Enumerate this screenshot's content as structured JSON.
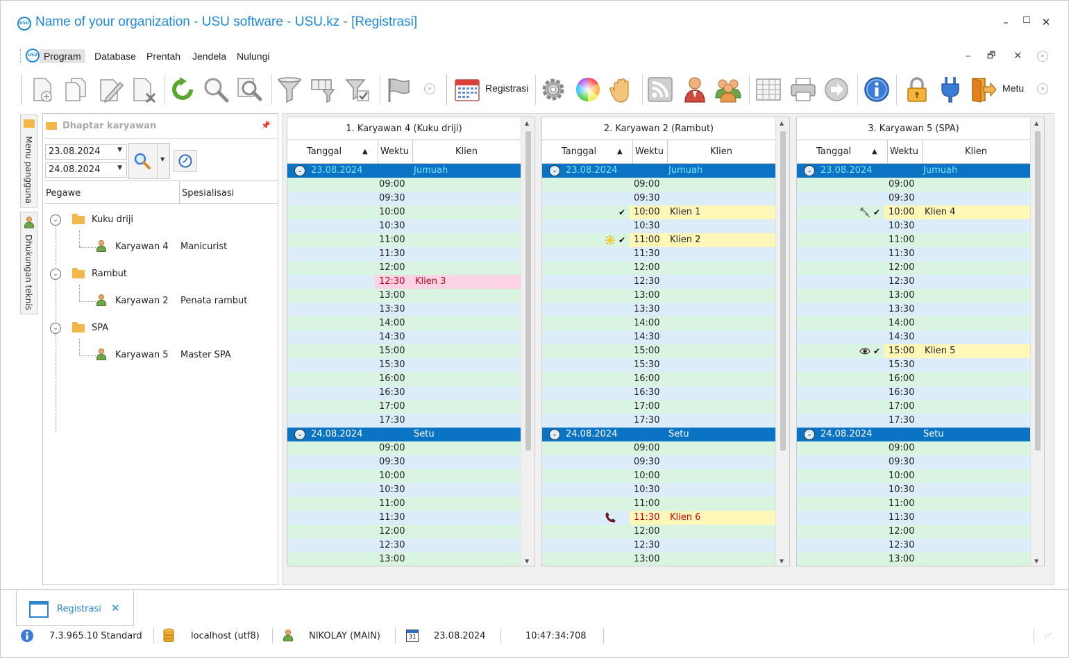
{
  "window": {
    "title": "Name of your organization - USU software - USU.kz - [Registrasi]",
    "logo_text": "USU",
    "controls": [
      "–",
      "☐",
      "✕"
    ]
  },
  "menu": {
    "items": [
      "Program",
      "Database",
      "Prentah",
      "Jendela",
      "Nulungi"
    ],
    "mdi_controls": [
      "–",
      "🗗",
      "✕"
    ]
  },
  "toolbar": {
    "registrasi_label": "Registrasi",
    "exit_label": "Metu"
  },
  "side_tabs": {
    "user_menu": "Menu pangguna",
    "tech_support": "Dhukungan teknis"
  },
  "employee_panel": {
    "title": "Dhaptar karyawan",
    "date_from": "23.08.2024",
    "date_to": "24.08.2024",
    "col_employee": "Pegawe",
    "col_specialization": "Spesialisasi",
    "groups": [
      {
        "name": "Kuku driji",
        "employee": "Karyawan 4",
        "specialization": "Manicurist"
      },
      {
        "name": "Rambut",
        "employee": "Karyawan 2",
        "specialization": "Penata rambut"
      },
      {
        "name": "SPA",
        "employee": "Karyawan 5",
        "specialization": "Master SPA"
      }
    ]
  },
  "schedule": {
    "col_date": "Tanggal",
    "col_time": "Wektu",
    "col_client": "Klien",
    "day1": {
      "date": "23.08.2024",
      "dow": "Jumuah"
    },
    "day2": {
      "date": "24.08.2024",
      "dow": "Setu"
    },
    "times_day1": [
      "09:00",
      "09:30",
      "10:00",
      "10:30",
      "11:00",
      "11:30",
      "12:00",
      "12:30",
      "13:00",
      "13:30",
      "14:00",
      "14:30",
      "15:00",
      "15:30",
      "16:00",
      "16:30",
      "17:00",
      "17:30"
    ],
    "times_day2": [
      "09:00",
      "09:30",
      "10:00",
      "10:30",
      "11:00",
      "11:30",
      "12:00",
      "12:30",
      "13:00"
    ],
    "columns": [
      {
        "title": "1. Karyawan 4 (Kuku driji)",
        "bookings": [
          {
            "day": 1,
            "time": "12:30",
            "client": "Klien 3",
            "style": "pink",
            "icon": "",
            "check": false
          }
        ]
      },
      {
        "title": "2. Karyawan 2 (Rambut)",
        "bookings": [
          {
            "day": 1,
            "time": "10:00",
            "client": "Klien 1",
            "style": "yellow",
            "icon": "",
            "check": true
          },
          {
            "day": 1,
            "time": "11:00",
            "client": "Klien 2",
            "style": "yellow",
            "icon": "sun-icon",
            "check": true
          },
          {
            "day": 2,
            "time": "11:30",
            "client": "Klien 6",
            "style": "yellow-red",
            "icon": "phone-icon",
            "check": false
          }
        ]
      },
      {
        "title": "3. Karyawan 5 (SPA)",
        "bookings": [
          {
            "day": 1,
            "time": "10:00",
            "client": "Klien 4",
            "style": "yellow",
            "icon": "syringe-icon",
            "check": true
          },
          {
            "day": 1,
            "time": "15:00",
            "client": "Klien 5",
            "style": "yellow",
            "icon": "eye-icon",
            "check": true
          }
        ]
      }
    ]
  },
  "doc_tab": {
    "label": "Registrasi"
  },
  "status": {
    "version": "7.3.965.10 Standard",
    "db": "localhost (utf8)",
    "user": "NIKOLAY (MAIN)",
    "calendar_day": "31",
    "date": "23.08.2024",
    "time": "10:47:34:708"
  }
}
